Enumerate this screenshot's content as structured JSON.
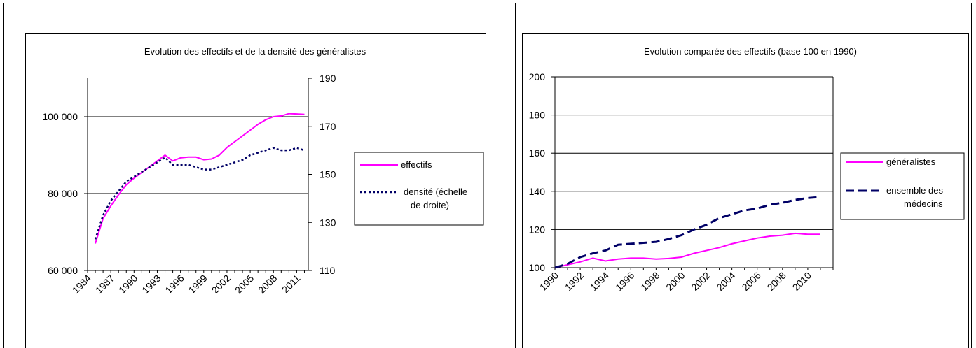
{
  "chart_data": [
    {
      "type": "line",
      "title": "Evolution des effectifs et de la densité des généralistes",
      "x": [
        1985,
        1986,
        1987,
        1988,
        1989,
        1990,
        1991,
        1992,
        1993,
        1994,
        1995,
        1996,
        1997,
        1998,
        1999,
        2000,
        2001,
        2002,
        2003,
        2004,
        2005,
        2006,
        2007,
        2008,
        2009,
        2010,
        2011,
        2012
      ],
      "x_tick_labels": [
        "1984",
        "1987",
        "1990",
        "1993",
        "1996",
        "1999",
        "2002",
        "2005",
        "2008",
        "2011"
      ],
      "y_left": {
        "ylim": [
          60000,
          110000
        ],
        "ticks": [
          "60 000",
          "80 000",
          "100 000"
        ]
      },
      "y_right": {
        "ylim": [
          110,
          190
        ],
        "ticks": [
          "110",
          "130",
          "150",
          "170",
          "190"
        ]
      },
      "series": [
        {
          "name": "effectifs",
          "axis": "left",
          "color": "#ff00ff",
          "style": "solid",
          "values": [
            67000,
            73500,
            76800,
            79700,
            82300,
            84000,
            85500,
            87000,
            88500,
            90000,
            88500,
            89300,
            89500,
            89500,
            88800,
            89000,
            90000,
            92000,
            93500,
            95000,
            96500,
            98000,
            99200,
            100000,
            100200,
            100800,
            100700,
            100600
          ]
        },
        {
          "name": "densité (échelle de droite)",
          "axis": "right",
          "color": "#000066",
          "style": "dotted",
          "values": [
            123,
            133,
            139,
            143,
            147,
            149,
            151,
            153,
            155,
            157,
            154,
            154,
            154,
            153,
            152,
            152,
            153,
            154,
            155,
            156,
            158,
            159,
            160,
            161,
            160,
            160,
            161,
            160
          ]
        }
      ],
      "legend": [
        {
          "label": "effectifs"
        },
        {
          "label_lines": [
            "densité (échelle",
            "de droite)"
          ]
        }
      ]
    },
    {
      "type": "line",
      "title": "Evolution comparée des effectifs  (base 100 en 1990)",
      "x": [
        1990,
        1991,
        1992,
        1993,
        1994,
        1995,
        1996,
        1997,
        1998,
        1999,
        2000,
        2001,
        2002,
        2003,
        2004,
        2005,
        2006,
        2007,
        2008,
        2009,
        2010,
        2011
      ],
      "x_tick_labels": [
        "1990",
        "1992",
        "1994",
        "1996",
        "1998",
        "2000",
        "2002",
        "2004",
        "2006",
        "2008",
        "2010"
      ],
      "ylim": [
        100,
        200
      ],
      "y_ticks": [
        "100",
        "120",
        "140",
        "160",
        "180",
        "200"
      ],
      "series": [
        {
          "name": "généralistes",
          "color": "#ff00ff",
          "style": "solid",
          "values": [
            100,
            101.5,
            103,
            105,
            103.5,
            104.5,
            105,
            105,
            104.5,
            104.8,
            105.5,
            107.5,
            109,
            110.5,
            112.5,
            114,
            115.5,
            116.5,
            117,
            118,
            117.5,
            117.5
          ]
        },
        {
          "name": "ensemble des médecins",
          "color": "#000066",
          "style": "dashed",
          "values": [
            100,
            102,
            105.5,
            107.5,
            109,
            112,
            112.5,
            113,
            113.5,
            115,
            117,
            120,
            122.5,
            126,
            128,
            130,
            131,
            133,
            134,
            135.5,
            136.5,
            137
          ]
        }
      ],
      "legend": [
        {
          "label": "généralistes"
        },
        {
          "label_lines": [
            "ensemble des",
            "médecins"
          ]
        }
      ]
    }
  ]
}
